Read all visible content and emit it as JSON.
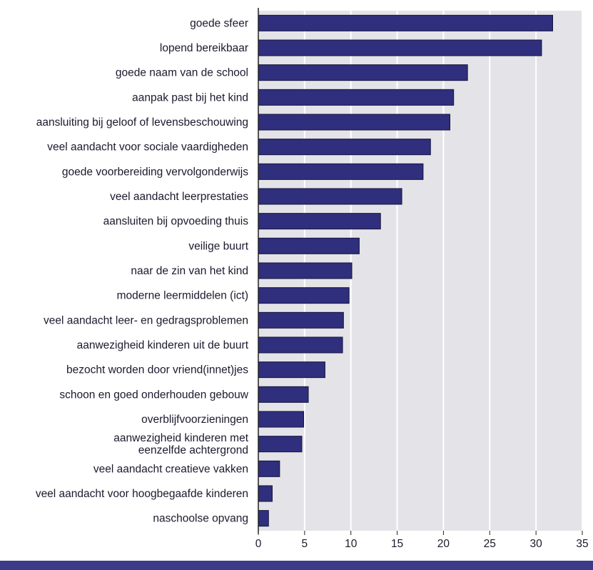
{
  "chart_data": {
    "type": "bar",
    "orientation": "horizontal",
    "categories": [
      "goede sfeer",
      "lopend bereikbaar",
      "goede naam van de school",
      "aanpak past bij het kind",
      "aansluiting bij geloof of levensbeschouwing",
      "veel aandacht voor sociale vaardigheden",
      "goede voorbereiding vervolgonderwijs",
      "veel aandacht leerprestaties",
      "aansluiten bij opvoeding thuis",
      "veilige buurt",
      "naar de zin van het kind",
      "moderne leermiddelen (ict)",
      "veel aandacht leer- en gedragsproblemen",
      "aanwezigheid kinderen uit de buurt",
      "bezocht worden door vriend(innet)jes",
      "schoon en goed onderhouden gebouw",
      "overblijfvoorzieningen",
      "aanwezigheid kinderen met eenzelfde achtergrond",
      "veel aandacht creatieve vakken",
      "veel aandacht voor hoogbegaafde kinderen",
      "naschoolse opvang"
    ],
    "label_lines": [
      [
        "goede sfeer"
      ],
      [
        "lopend bereikbaar"
      ],
      [
        "goede naam van de school"
      ],
      [
        "aanpak past bij het kind"
      ],
      [
        "aansluiting bij geloof of levensbeschouwing"
      ],
      [
        "veel aandacht voor sociale vaardigheden"
      ],
      [
        "goede voorbereiding vervolgonderwijs"
      ],
      [
        "veel aandacht leerprestaties"
      ],
      [
        "aansluiten bij opvoeding thuis"
      ],
      [
        "veilige buurt"
      ],
      [
        "naar de zin van het kind"
      ],
      [
        "moderne leermiddelen (ict)"
      ],
      [
        "veel aandacht leer- en gedragsproblemen"
      ],
      [
        "aanwezigheid kinderen uit de buurt"
      ],
      [
        "bezocht worden door vriend(innet)jes"
      ],
      [
        "schoon en goed onderhouden gebouw"
      ],
      [
        "overblijfvoorzieningen"
      ],
      [
        "aanwezigheid kinderen met",
        "eenzelfde achtergrond"
      ],
      [
        "veel aandacht creatieve vakken"
      ],
      [
        "veel aandacht voor hoogbegaafde kinderen"
      ],
      [
        "naschoolse opvang"
      ]
    ],
    "values": [
      31.8,
      30.6,
      22.6,
      21.1,
      20.7,
      18.6,
      17.8,
      15.5,
      13.2,
      10.9,
      10.1,
      9.8,
      9.2,
      9.1,
      7.2,
      5.4,
      4.9,
      4.7,
      2.3,
      1.5,
      1.1
    ],
    "xticks": [
      0,
      5,
      10,
      15,
      20,
      25,
      30,
      35
    ],
    "xlim": [
      0,
      35
    ],
    "title": "",
    "xlabel": "",
    "ylabel": "",
    "grid": true,
    "colors": {
      "bar": "#2f2f7d",
      "bar_edge": "#14143f",
      "plot_background": "#e4e4e8",
      "gridline": "#ffffff",
      "axis": "#222222",
      "bottom_band": "#3b3b87"
    }
  }
}
